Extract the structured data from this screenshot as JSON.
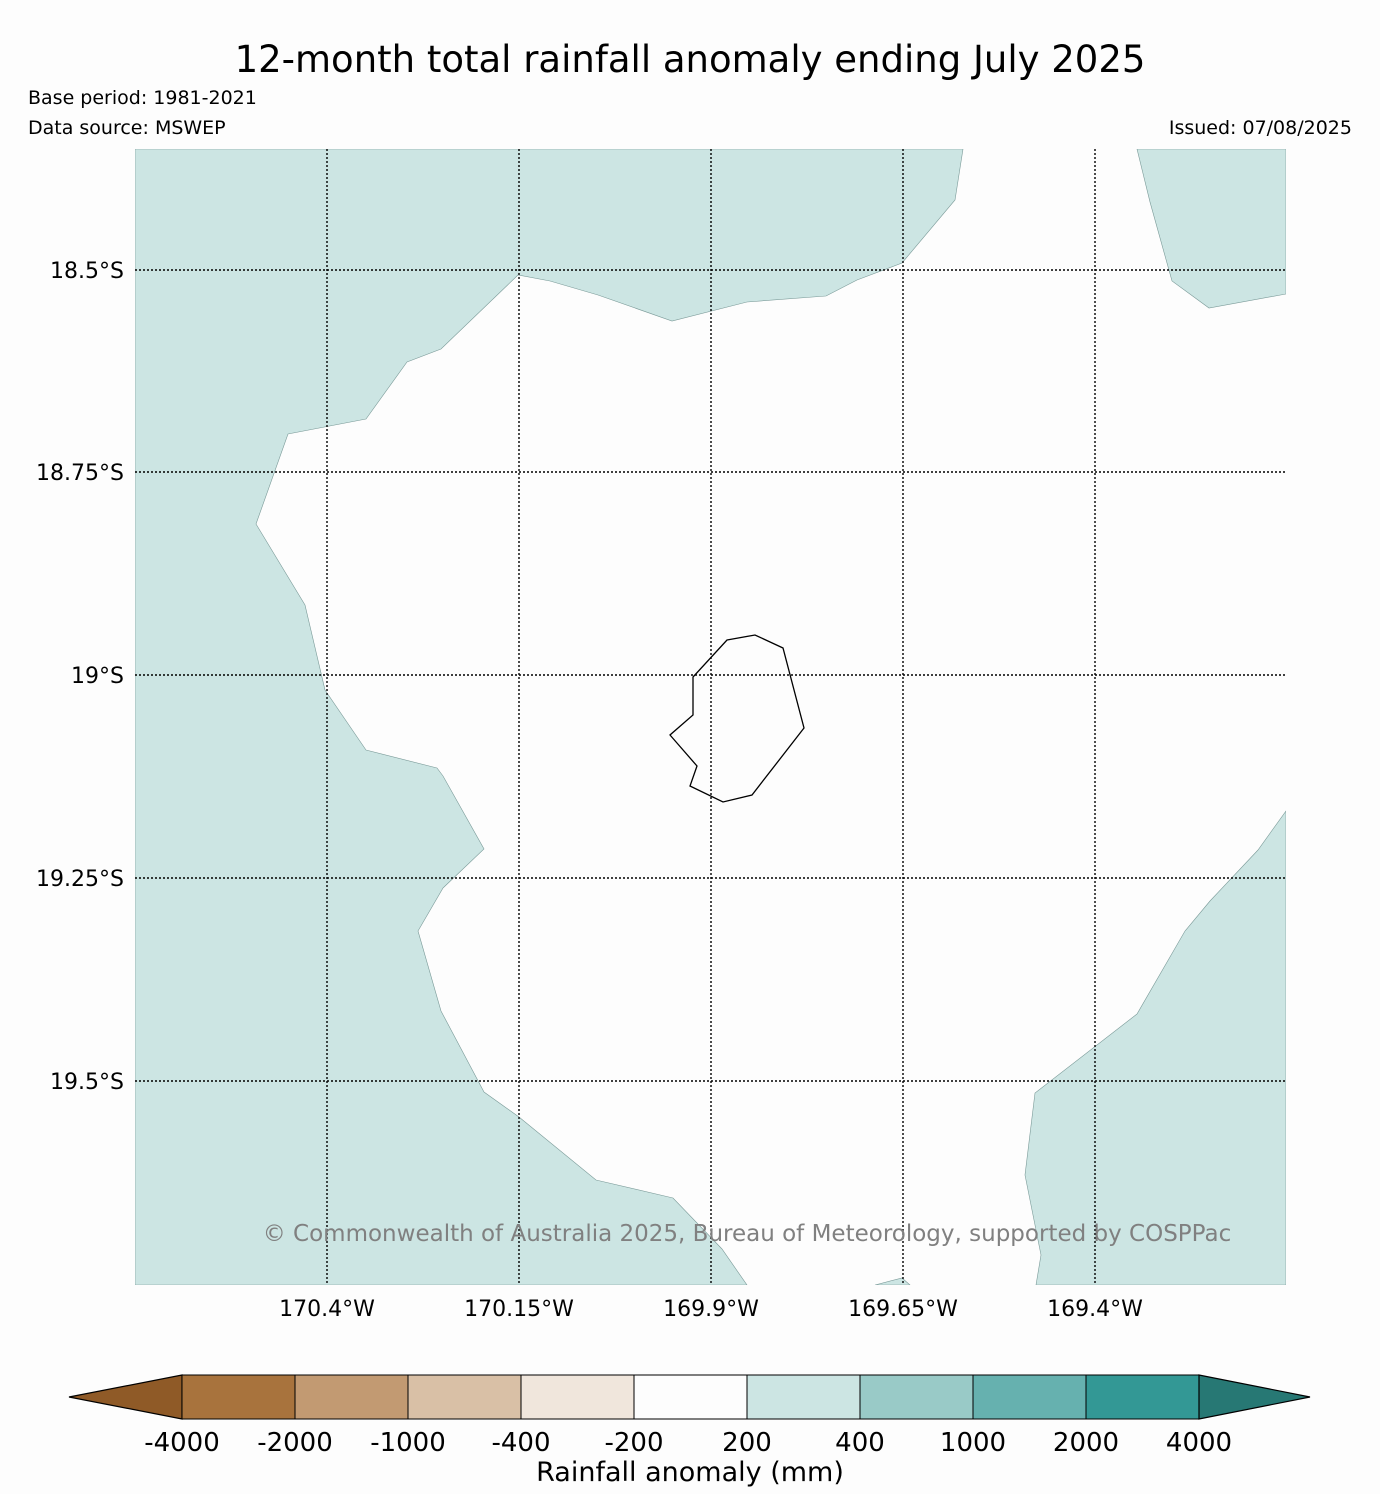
{
  "header": {
    "title": "12-month total rainfall anomaly ending July 2025",
    "base_period": "Base period: 1981-2021",
    "data_source": "Data source: MSWEP",
    "issued": "Issued: 07/08/2025"
  },
  "map": {
    "lat_labels": [
      "18.5°S",
      "18.75°S",
      "19°S",
      "19.25°S",
      "19.5°S"
    ],
    "lon_labels": [
      "170.4°W",
      "170.15°W",
      "169.9°W",
      "169.65°W",
      "169.4°W"
    ],
    "copyright": "© Commonwealth of Australia 2025, Bureau of Meteorology, supported by COSPPac",
    "colors": {
      "positive_anomaly_fill": "#cce5e3",
      "neutral_fill": "#fdfdfd",
      "coastline": "#000000"
    }
  },
  "colorbar": {
    "title": "Rainfall anomaly (mm)",
    "tick_labels": [
      "-4000",
      "-2000",
      "-1000",
      "-400",
      "-200",
      "200",
      "400",
      "1000",
      "2000",
      "4000"
    ],
    "colors": [
      "#8f5a27",
      "#a8733d",
      "#c29a72",
      "#d9c0a6",
      "#f0e6dc",
      "#fdfdfd",
      "#cce5e3",
      "#99cac7",
      "#66b1af",
      "#339895",
      "#277874"
    ]
  }
}
